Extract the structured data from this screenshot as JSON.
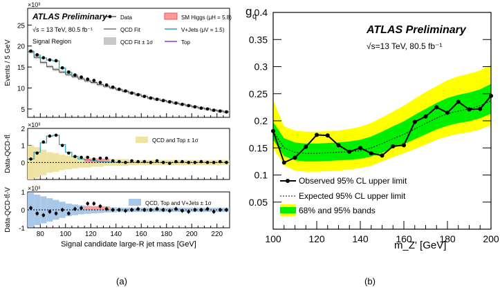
{
  "chart_data": [
    {
      "type": "line",
      "panel": "a-top",
      "title": "ATLAS Preliminary",
      "subtitle": "√s = 13 TeV, 80.5 fb⁻¹",
      "region": "Signal Region",
      "ylabel": "Events / 5 GeV",
      "yexp": "×10³",
      "ylim": [
        3,
        29
      ],
      "yticks": [
        5,
        10,
        15,
        20,
        25
      ],
      "xlim": [
        70,
        230
      ],
      "legend": [
        "Data",
        "SM Higgs (μH = 5.8)",
        "QCD Fit",
        "V+Jets (μV = 1.5)",
        "QCD Fit ± 1σ",
        "Top"
      ],
      "x": [
        72.5,
        77.5,
        82.5,
        87.5,
        92.5,
        97.5,
        102.5,
        107.5,
        112.5,
        117.5,
        122.5,
        127.5,
        132.5,
        137.5,
        142.5,
        147.5,
        152.5,
        157.5,
        162.5,
        167.5,
        172.5,
        177.5,
        182.5,
        187.5,
        192.5,
        197.5,
        202.5,
        207.5,
        212.5,
        217.5,
        222.5,
        227.5
      ],
      "series": [
        {
          "name": "Data",
          "values": [
            18.8,
            17.9,
            17.2,
            16.7,
            16.5,
            14.8,
            13.8,
            13.1,
            12.6,
            12.1,
            11.8,
            11.3,
            10.7,
            10.2,
            9.7,
            9.3,
            8.8,
            8.4,
            8.0,
            7.6,
            7.3,
            7.0,
            6.7,
            6.4,
            6.1,
            5.8,
            5.5,
            5.2,
            5.0,
            4.7,
            4.5,
            4.3
          ]
        },
        {
          "name": "QCD Fit",
          "values": [
            18.6,
            17.3,
            16.1,
            15.1,
            14.4,
            13.8,
            13.2,
            12.7,
            12.2,
            11.7,
            11.3,
            10.8,
            10.4,
            10.0,
            9.6,
            9.2,
            8.8,
            8.4,
            8.0,
            7.6,
            7.3,
            7.0,
            6.7,
            6.4,
            6.1,
            5.8,
            5.5,
            5.2,
            5.0,
            4.7,
            4.5,
            4.3
          ]
        }
      ]
    },
    {
      "type": "bar",
      "panel": "a-mid",
      "ylabel": "Data-QCD-tt̄",
      "yexp": "×10³",
      "ylim": [
        -1,
        2
      ],
      "yticks": [
        0,
        1,
        2
      ],
      "legend": [
        "QCD and Top ± 1σ"
      ],
      "x": [
        72.5,
        77.5,
        82.5,
        87.5,
        92.5,
        97.5,
        102.5,
        107.5,
        112.5,
        117.5,
        122.5,
        127.5,
        132.5,
        137.5,
        142.5,
        147.5,
        152.5,
        157.5,
        162.5,
        167.5,
        172.5,
        177.5,
        182.5,
        187.5,
        192.5,
        197.5,
        202.5,
        207.5,
        212.5,
        217.5,
        222.5,
        227.5
      ],
      "series": [
        {
          "name": "Data",
          "values": [
            0.2,
            0.55,
            1.2,
            1.55,
            1.6,
            1.0,
            0.55,
            0.35,
            0.3,
            0.3,
            0.2,
            0.25,
            0.25,
            0.1,
            0.05,
            0.0,
            0.1,
            0.05,
            0.05,
            0.0,
            0.1,
            0.0,
            -0.05,
            0.05,
            0.05,
            0.0,
            0.0,
            0.05,
            0.0,
            0.0,
            0.05,
            0.0
          ]
        },
        {
          "name": "V+Jets",
          "values": [
            0.2,
            0.6,
            1.15,
            1.55,
            1.6,
            1.05,
            0.6,
            0.35,
            0.2,
            0.15,
            0.1,
            0.05,
            0.03,
            0.02,
            0.0,
            0.0,
            0.0,
            0.0,
            0.0,
            0.0,
            0.0,
            0.0,
            0.0,
            0.0,
            0.0,
            0.0,
            0.0,
            0.0,
            0.0,
            0.0,
            0.0,
            0.0
          ]
        },
        {
          "name": "Band",
          "values": [
            1.0,
            0.9,
            0.75,
            0.6,
            0.55,
            0.45,
            0.4,
            0.35,
            0.3,
            0.3,
            0.25,
            0.25,
            0.2,
            0.2,
            0.2,
            0.2,
            0.15,
            0.15,
            0.15,
            0.15,
            0.15,
            0.15,
            0.15,
            0.15,
            0.15,
            0.15,
            0.15,
            0.15,
            0.15,
            0.15,
            0.15,
            0.15
          ]
        }
      ]
    },
    {
      "type": "bar",
      "panel": "a-bot",
      "ylabel": "Data-QCD-tt̄-V",
      "yexp": "×10³",
      "ylim": [
        -1,
        1
      ],
      "yticks": [
        -1,
        0,
        1
      ],
      "xlabel": "Signal candidate large-R jet mass [GeV]",
      "xticks": [
        80,
        100,
        120,
        140,
        160,
        180,
        200,
        220
      ],
      "legend": [
        "QCD, Top and V+Jets ± 1σ"
      ],
      "x": [
        72.5,
        77.5,
        82.5,
        87.5,
        92.5,
        97.5,
        102.5,
        107.5,
        112.5,
        117.5,
        122.5,
        127.5,
        132.5,
        137.5,
        142.5,
        147.5,
        152.5,
        157.5,
        162.5,
        167.5,
        172.5,
        177.5,
        182.5,
        187.5,
        192.5,
        197.5,
        202.5,
        207.5,
        212.5,
        217.5,
        222.5,
        227.5
      ],
      "series": [
        {
          "name": "Data",
          "values": [
            0.1,
            -0.2,
            -0.3,
            -0.1,
            -0.2,
            0.0,
            -0.2,
            0.05,
            0.1,
            0.35,
            0.35,
            0.2,
            0.05,
            0.0,
            0.0,
            -0.05,
            0.0,
            0.05,
            0.0,
            0.0,
            0.05,
            0.0,
            -0.05,
            0.05,
            -0.05,
            -0.1,
            0.0,
            0.0,
            0.05,
            -0.1,
            0.0,
            0.0
          ]
        },
        {
          "name": "Band",
          "values": [
            0.95,
            0.85,
            0.75,
            0.65,
            0.55,
            0.45,
            0.35,
            0.3,
            0.25,
            0.22,
            0.2,
            0.18,
            0.15,
            0.14,
            0.13,
            0.12,
            0.12,
            0.12,
            0.12,
            0.12,
            0.12,
            0.12,
            0.12,
            0.12,
            0.12,
            0.12,
            0.12,
            0.12,
            0.12,
            0.12,
            0.12,
            0.12
          ]
        }
      ]
    },
    {
      "type": "line",
      "panel": "b",
      "title": "ATLAS Preliminary",
      "subtitle": "√s=13 TeV, 80.5 fb⁻¹",
      "ylabel": "g_q",
      "xlabel": "m_Z' [GeV]",
      "xlim": [
        100,
        200
      ],
      "ylim": [
        0,
        0.4
      ],
      "xticks": [
        100,
        120,
        140,
        160,
        180,
        200
      ],
      "yticks": [
        0.05,
        0.1,
        0.15,
        0.2,
        0.25,
        0.3,
        0.35,
        0.4
      ],
      "x": [
        100,
        105,
        110,
        115,
        120,
        125,
        130,
        135,
        140,
        145,
        150,
        155,
        160,
        165,
        170,
        175,
        180,
        185,
        190,
        195,
        200
      ],
      "series": [
        {
          "name": "Observed 95% CL upper limit",
          "values": [
            0.181,
            0.123,
            0.132,
            0.152,
            0.174,
            0.173,
            0.155,
            0.143,
            0.15,
            0.14,
            0.136,
            0.153,
            0.155,
            0.198,
            0.208,
            0.225,
            0.215,
            0.235,
            0.221,
            0.222,
            0.246
          ]
        },
        {
          "name": "Expected 95% CL upper limit",
          "values": [
            0.18,
            0.15,
            0.142,
            0.14,
            0.14,
            0.141,
            0.142,
            0.143,
            0.145,
            0.15,
            0.158,
            0.167,
            0.175,
            0.185,
            0.195,
            0.205,
            0.213,
            0.218,
            0.222,
            0.228,
            0.237
          ]
        },
        {
          "name": "68% and 95% bands",
          "lo68": [
            0.165,
            0.135,
            0.127,
            0.125,
            0.125,
            0.126,
            0.127,
            0.128,
            0.13,
            0.134,
            0.141,
            0.15,
            0.157,
            0.166,
            0.175,
            0.184,
            0.191,
            0.196,
            0.199,
            0.205,
            0.213
          ],
          "hi68": [
            0.198,
            0.168,
            0.16,
            0.158,
            0.158,
            0.159,
            0.16,
            0.162,
            0.165,
            0.171,
            0.18,
            0.19,
            0.199,
            0.211,
            0.222,
            0.233,
            0.242,
            0.248,
            0.252,
            0.258,
            0.268
          ],
          "lo95": [
            0.15,
            0.118,
            0.108,
            0.106,
            0.106,
            0.107,
            0.108,
            0.11,
            0.113,
            0.117,
            0.125,
            0.133,
            0.14,
            0.148,
            0.156,
            0.165,
            0.171,
            0.176,
            0.179,
            0.184,
            0.192
          ],
          "hi95": [
            0.238,
            0.19,
            0.182,
            0.18,
            0.18,
            0.181,
            0.182,
            0.185,
            0.189,
            0.196,
            0.206,
            0.217,
            0.228,
            0.241,
            0.253,
            0.264,
            0.275,
            0.282,
            0.287,
            0.293,
            0.304
          ]
        }
      ]
    }
  ],
  "captions": {
    "a": "(a)",
    "b": "(b)"
  },
  "legend_b": {
    "observed": "Observed 95% CL upper limit",
    "expected": "Expected 95% CL upper limit",
    "bands": "68% and 95% bands"
  },
  "colors": {
    "yellow": "#ffff00",
    "green": "#00ee00",
    "higgs": "#ff9999",
    "vjets": "#2aa3b8",
    "top": "#9933cc",
    "qcdband": "#c8c8c8",
    "tanband": "#efe3a3",
    "blueband": "#a9c8e9"
  }
}
